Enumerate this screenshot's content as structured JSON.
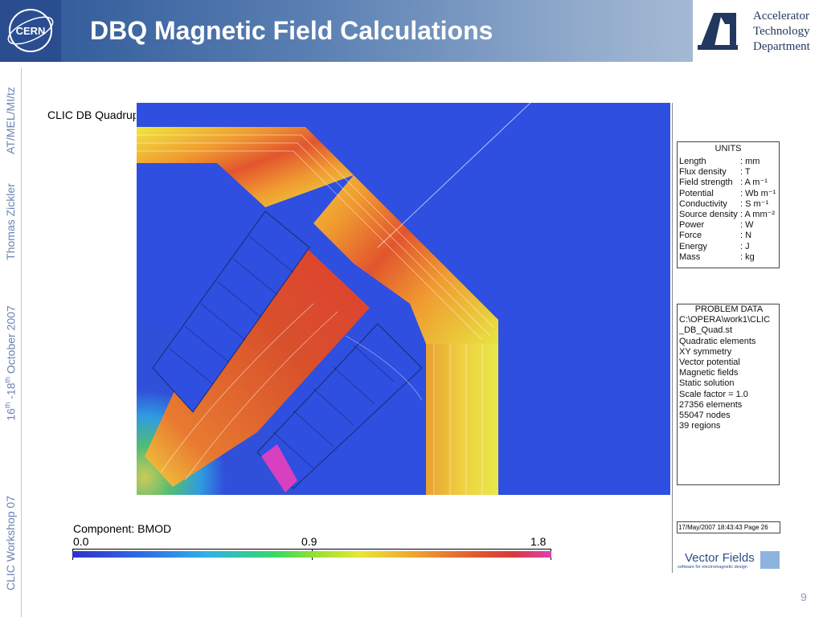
{
  "header": {
    "title": "DBQ Magnetic Field Calculations",
    "cern_logo_text": "CERN",
    "department": [
      "Accelerator",
      "Technology",
      "Department"
    ],
    "colors": {
      "header_start": "#2b5596",
      "header_end": "#b8c8dc",
      "title_text": "#ffffff"
    }
  },
  "sidebar": {
    "author_code": "AT/MEL/MI/tz",
    "author": "Thomas Zickler",
    "date_main": "16",
    "date_sup1": "th",
    "date_mid": " -18",
    "date_sup2": "th",
    "date_tail": " October 2007",
    "event": "CLIC Workshop 07"
  },
  "plot": {
    "title": "CLIC DB Quadrupole",
    "units_panel": {
      "heading": "UNITS",
      "rows": [
        {
          "k": "Length",
          "v": ": mm"
        },
        {
          "k": "Flux density",
          "v": ": T"
        },
        {
          "k": "Field strength",
          "v": ": A m⁻¹"
        },
        {
          "k": "Potential",
          "v": ": Wb m⁻¹"
        },
        {
          "k": "Conductivity",
          "v": ": S m⁻¹"
        },
        {
          "k": "Source density",
          "v": ": A mm⁻²"
        },
        {
          "k": "Power",
          "v": ": W"
        },
        {
          "k": "Force",
          "v": ": N"
        },
        {
          "k": "Energy",
          "v": ": J"
        },
        {
          "k": "Mass",
          "v": ": kg"
        }
      ]
    },
    "problem_panel": {
      "lines": [
        "PROBLEM DATA",
        "C:\\OPERA\\work1\\CLIC",
        "_DB_Quad.st",
        "Quadratic elements",
        "XY symmetry",
        "Vector potential",
        "Magnetic fields",
        "Static solution",
        "Scale factor = 1.0",
        "27356 elements",
        "55047 nodes",
        "39 regions"
      ]
    },
    "timestamp": "17/May/2007 18:43:43 Page 26",
    "vendor": "Vector Fields",
    "vendor_tagline": "software for electromagnetic design",
    "colorbar": {
      "component_label": "Component: BMOD",
      "min": "0.0",
      "mid": "0.9",
      "max": "1.8"
    }
  },
  "footer": {
    "page_number": "9"
  }
}
